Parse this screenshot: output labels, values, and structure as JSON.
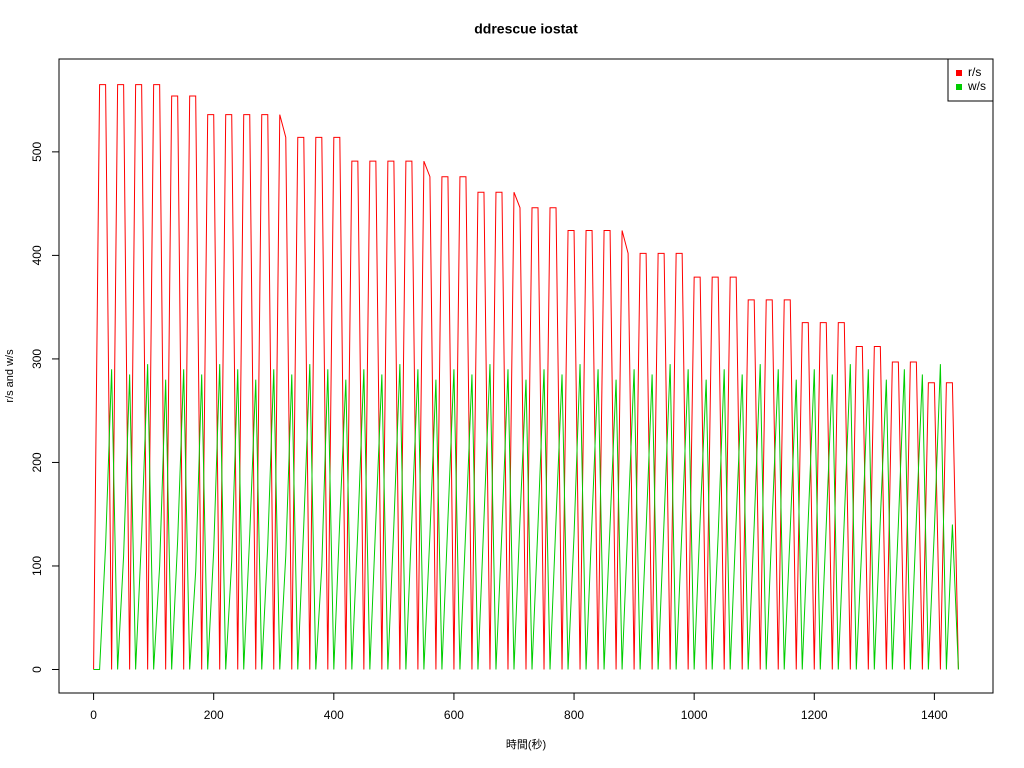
{
  "chart_data": {
    "type": "line",
    "title": "ddrescue iostat",
    "xlabel": "時間(秒)",
    "ylabel": "r/s and w/s",
    "x": [
      0,
      10,
      20,
      30,
      40,
      50,
      60,
      70,
      80,
      90,
      100,
      110,
      120,
      130,
      140,
      150,
      160,
      170,
      180,
      190,
      200,
      210,
      220,
      230,
      240,
      250,
      260,
      270,
      280,
      290,
      300,
      310,
      320,
      330,
      340,
      350,
      360,
      370,
      380,
      390,
      400,
      410,
      420,
      430,
      440,
      450,
      460,
      470,
      480,
      490,
      500,
      510,
      520,
      530,
      540,
      550,
      560,
      570,
      580,
      590,
      600,
      610,
      620,
      630,
      640,
      650,
      660,
      670,
      680,
      690,
      700,
      710,
      720,
      730,
      740,
      750,
      760,
      770,
      780,
      790,
      800,
      810,
      820,
      830,
      840,
      850,
      860,
      870,
      880,
      890,
      900,
      910,
      920,
      930,
      940,
      950,
      960,
      970,
      980,
      990,
      1000,
      1010,
      1020,
      1030,
      1040,
      1050,
      1060,
      1070,
      1080,
      1090,
      1100,
      1110,
      1120,
      1130,
      1140,
      1150,
      1160,
      1170,
      1180,
      1190,
      1200,
      1210,
      1220,
      1230,
      1240,
      1250,
      1260,
      1270,
      1280,
      1290,
      1300,
      1310,
      1320,
      1330,
      1340,
      1350,
      1360,
      1370,
      1380,
      1390,
      1400,
      1410,
      1420,
      1430,
      1440
    ],
    "series": [
      {
        "name": "r/s",
        "color": "#ff0000",
        "values": [
          0,
          565,
          565,
          0,
          565,
          565,
          0,
          565,
          565,
          0,
          565,
          565,
          0,
          554,
          554,
          0,
          554,
          554,
          0,
          536,
          536,
          0,
          536,
          536,
          0,
          536,
          536,
          0,
          536,
          536,
          0,
          536,
          514,
          0,
          514,
          514,
          0,
          514,
          514,
          0,
          514,
          514,
          0,
          491,
          491,
          0,
          491,
          491,
          0,
          491,
          491,
          0,
          491,
          491,
          0,
          491,
          476,
          0,
          476,
          476,
          0,
          476,
          476,
          0,
          461,
          461,
          0,
          461,
          461,
          0,
          461,
          446,
          0,
          446,
          446,
          0,
          446,
          446,
          0,
          424,
          424,
          0,
          424,
          424,
          0,
          424,
          424,
          0,
          424,
          402,
          0,
          402,
          402,
          0,
          402,
          402,
          0,
          402,
          402,
          0,
          379,
          379,
          0,
          379,
          379,
          0,
          379,
          379,
          0,
          357,
          357,
          0,
          357,
          357,
          0,
          357,
          357,
          0,
          335,
          335,
          0,
          335,
          335,
          0,
          335,
          335,
          0,
          312,
          312,
          0,
          312,
          312,
          0,
          297,
          297,
          0,
          297,
          297,
          0,
          277,
          277,
          0,
          277,
          277,
          0
        ]
      },
      {
        "name": "w/s",
        "color": "#00cd00",
        "values": [
          0,
          0,
          120,
          290,
          0,
          110,
          285,
          0,
          130,
          295,
          0,
          100,
          280,
          0,
          125,
          290,
          0,
          95,
          285,
          0,
          115,
          295,
          0,
          105,
          290,
          0,
          130,
          280,
          0,
          120,
          290,
          0,
          110,
          285,
          0,
          140,
          295,
          0,
          100,
          290,
          0,
          145,
          280,
          0,
          135,
          290,
          0,
          145,
          285,
          0,
          140,
          295,
          0,
          145,
          290,
          0,
          130,
          280,
          0,
          145,
          290,
          0,
          140,
          285,
          0,
          145,
          295,
          0,
          135,
          290,
          0,
          145,
          280,
          0,
          140,
          290,
          0,
          145,
          285,
          0,
          130,
          295,
          0,
          145,
          290,
          0,
          140,
          280,
          0,
          145,
          290,
          0,
          135,
          285,
          0,
          145,
          295,
          0,
          140,
          290,
          0,
          145,
          280,
          0,
          130,
          290,
          0,
          145,
          285,
          0,
          140,
          295,
          0,
          145,
          290,
          0,
          135,
          280,
          0,
          145,
          290,
          0,
          140,
          285,
          0,
          145,
          295,
          0,
          130,
          290,
          0,
          145,
          280,
          0,
          140,
          290,
          0,
          145,
          285,
          0,
          135,
          295,
          0,
          140,
          0
        ]
      }
    ],
    "xlim": [
      -57.6,
      1497.6
    ],
    "ylim": [
      -22.7,
      589.7
    ],
    "xticks": [
      0,
      200,
      400,
      600,
      800,
      1000,
      1200,
      1400
    ],
    "yticks": [
      0,
      100,
      200,
      300,
      400,
      500
    ],
    "grid": false,
    "legend": "top-right"
  }
}
